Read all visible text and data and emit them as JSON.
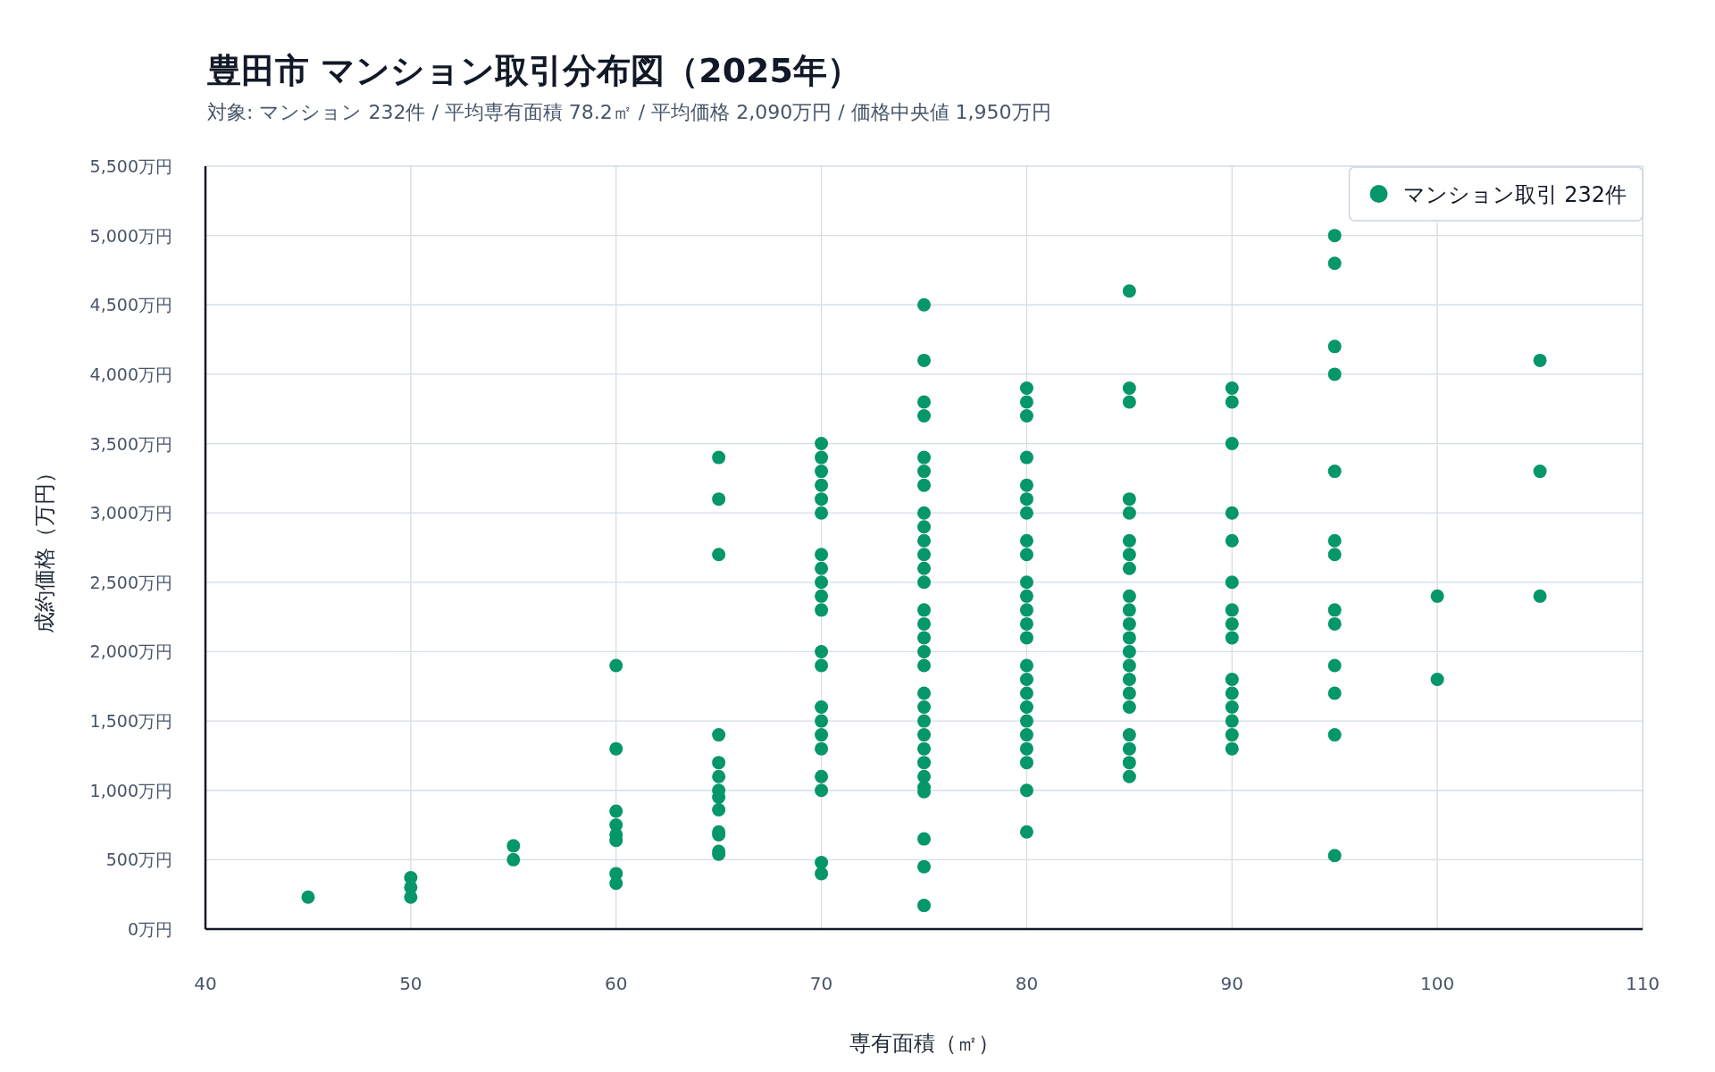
{
  "chart_data": {
    "type": "scatter",
    "title": "豊田市 マンション取引分布図（2025年）",
    "subtitle": "対象: マンション 232件 / 平均専有面積 78.2㎡ / 平均価格 2,090万円 / 価格中央値 1,950万円",
    "xlabel": "専有面積（㎡）",
    "ylabel": "成約価格（万円）",
    "xlim": [
      40,
      110
    ],
    "xticks": [
      40,
      50,
      60,
      70,
      80,
      90,
      100,
      110
    ],
    "ylim": [
      0,
      5500
    ],
    "yticks": [
      {
        "value": 0,
        "label": "0万円"
      },
      {
        "value": 500,
        "label": "500万円"
      },
      {
        "value": 1000,
        "label": "1,000万円"
      },
      {
        "value": 1500,
        "label": "1,500万円"
      },
      {
        "value": 2000,
        "label": "2,000万円"
      },
      {
        "value": 2500,
        "label": "2,500万円"
      },
      {
        "value": 3000,
        "label": "3,000万円"
      },
      {
        "value": 3500,
        "label": "3,500万円"
      },
      {
        "value": 4000,
        "label": "4,000万円"
      },
      {
        "value": 4500,
        "label": "4,500万円"
      },
      {
        "value": 5000,
        "label": "5,000万円"
      },
      {
        "value": 5500,
        "label": "5,500万円"
      }
    ],
    "grid": true,
    "legend": "top right",
    "marker": "circle",
    "series": [
      {
        "name": "マンション取引 232件",
        "color": "#059669",
        "x": [
          45,
          50,
          50,
          50,
          55,
          55,
          60,
          60,
          60,
          60,
          60,
          60,
          60,
          60,
          65,
          65,
          65,
          65,
          65,
          65,
          65,
          65,
          65,
          65,
          65,
          65,
          65,
          70,
          70,
          70,
          70,
          70,
          70,
          70,
          70,
          70,
          70,
          70,
          70,
          70,
          70,
          70,
          70,
          70,
          70,
          70,
          70,
          70,
          75,
          75,
          75,
          75,
          75,
          75,
          75,
          75,
          75,
          75,
          75,
          75,
          75,
          75,
          75,
          75,
          75,
          75,
          75,
          75,
          75,
          75,
          75,
          75,
          75,
          75,
          75,
          75,
          75,
          75,
          80,
          80,
          80,
          80,
          80,
          80,
          80,
          80,
          80,
          80,
          80,
          80,
          80,
          80,
          80,
          80,
          80,
          80,
          80,
          80,
          80,
          80,
          80,
          80,
          85,
          85,
          85,
          85,
          85,
          85,
          85,
          85,
          85,
          85,
          85,
          85,
          85,
          85,
          85,
          85,
          85,
          85,
          85,
          85,
          85,
          90,
          90,
          90,
          90,
          90,
          90,
          90,
          90,
          90,
          90,
          90,
          90,
          90,
          90,
          90,
          95,
          95,
          95,
          95,
          95,
          95,
          95,
          95,
          95,
          95,
          95,
          95,
          95,
          100,
          100,
          105,
          105,
          105
        ],
        "values": [
          230,
          370,
          300,
          230,
          600,
          500,
          1900,
          1300,
          850,
          750,
          680,
          640,
          400,
          330,
          3400,
          3100,
          2700,
          1400,
          1200,
          1100,
          1000,
          950,
          860,
          700,
          680,
          560,
          540,
          3500,
          3400,
          3300,
          3200,
          3100,
          3000,
          2700,
          2600,
          2500,
          2400,
          2300,
          2000,
          1900,
          1600,
          1500,
          1400,
          1300,
          1100,
          1000,
          480,
          400,
          4500,
          4100,
          3800,
          3700,
          3400,
          3300,
          3200,
          3000,
          2900,
          2800,
          2700,
          2600,
          2500,
          2300,
          2200,
          2100,
          2000,
          1900,
          1700,
          1600,
          1500,
          1400,
          1300,
          1200,
          1100,
          1020,
          990,
          650,
          450,
          170,
          3900,
          3800,
          3700,
          3400,
          3200,
          3100,
          3000,
          2800,
          2700,
          2500,
          2400,
          2300,
          2200,
          2100,
          1900,
          1800,
          1700,
          1600,
          1500,
          1400,
          1300,
          1200,
          1000,
          700,
          4600,
          3900,
          3800,
          3100,
          3000,
          2800,
          2700,
          2600,
          2400,
          2300,
          2200,
          2100,
          2000,
          1900,
          1800,
          1700,
          1600,
          1400,
          1300,
          1200,
          1100,
          3900,
          3800,
          3500,
          3000,
          2800,
          2500,
          2300,
          2200,
          2100,
          1800,
          1700,
          1600,
          1500,
          1400,
          1300,
          5000,
          4800,
          4200,
          4000,
          3300,
          2800,
          2700,
          2300,
          2200,
          1900,
          1700,
          1400,
          530,
          2400,
          1800,
          4100,
          3300,
          2400
        ]
      }
    ]
  }
}
